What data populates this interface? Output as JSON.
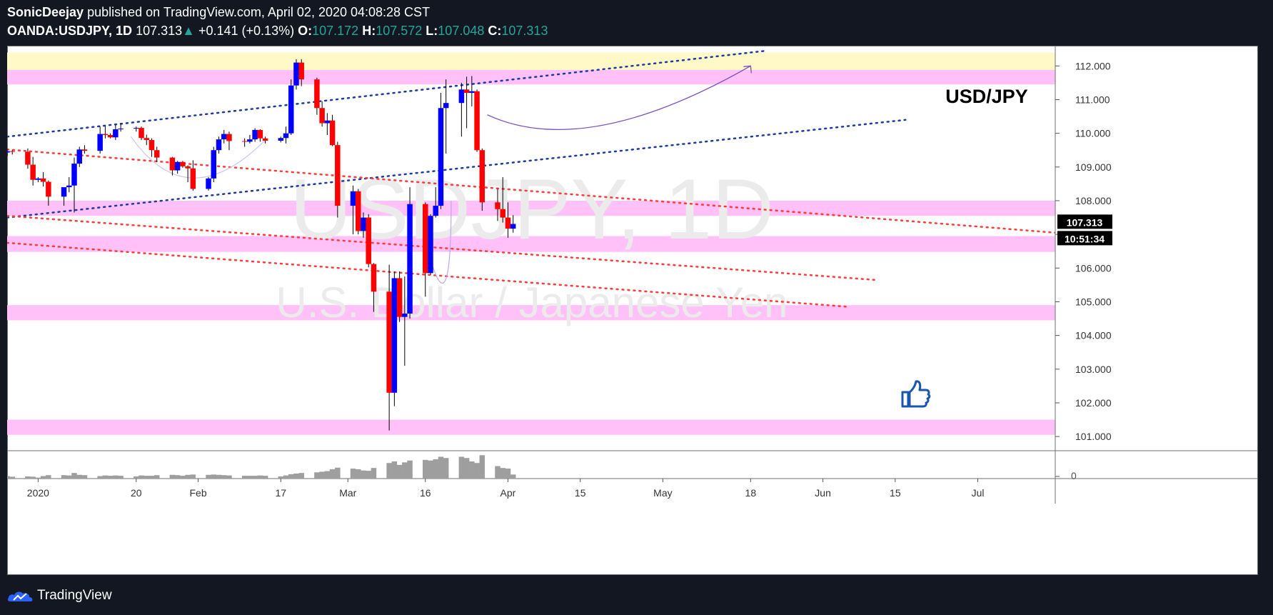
{
  "header": {
    "author": "SonicDeejay",
    "published_text": "published on TradingView.com, April 02, 2020 04:08:28 CST",
    "symbol": "OANDA:USDJPY, 1D",
    "last": "107.313",
    "change_arrow": "▲",
    "change": "+0.141 (+0.13%)",
    "open_label": "O:",
    "open": "107.172",
    "high_label": "H:",
    "high": "107.572",
    "low_label": "L:",
    "low": "107.048",
    "close_label": "C:",
    "close": "107.313"
  },
  "footer": {
    "brand": "TradingView"
  },
  "colors": {
    "up": "#0000ff",
    "down": "#ff0000",
    "wick": "#000000",
    "zone": "#ffc1f7",
    "zone_top": "#fff9c8",
    "channel_blue": "#1e3aa0",
    "channel_red": "#ff3b3b",
    "projection": "#7b4fbf",
    "volume": "#9e9e9e",
    "price_badge": "#000000",
    "thumb": "#1a56b0"
  },
  "chart_data": {
    "type": "candlestick",
    "instrument": "USD/JPY",
    "timeframe": "1D",
    "watermark": [
      "USDJPY, 1D",
      "U.S. Dollar / Japanese Yen"
    ],
    "title_label": "USD/JPY",
    "ylim": [
      100.6,
      112.6
    ],
    "yticks": [
      "112.000",
      "111.000",
      "110.000",
      "109.000",
      "108.000",
      "107.000",
      "106.000",
      "105.000",
      "104.000",
      "103.000",
      "102.000",
      "101.000"
    ],
    "ytick_values": [
      112,
      111,
      110,
      109,
      108,
      107,
      106,
      105,
      104,
      103,
      102,
      101
    ],
    "xticks": [
      {
        "label": "2020",
        "date": "2020-01-01"
      },
      {
        "label": "20",
        "date": "2020-01-20"
      },
      {
        "label": "Feb",
        "date": "2020-02-01"
      },
      {
        "label": "17",
        "date": "2020-02-17"
      },
      {
        "label": "Mar",
        "date": "2020-03-01"
      },
      {
        "label": "16",
        "date": "2020-03-16"
      },
      {
        "label": "Apr",
        "date": "2020-04-01"
      },
      {
        "label": "15",
        "date": "2020-04-15"
      },
      {
        "label": "May",
        "date": "2020-05-01"
      },
      {
        "label": "18",
        "date": "2020-05-18"
      },
      {
        "label": "Jun",
        "date": "2020-06-01"
      },
      {
        "label": "15",
        "date": "2020-06-15"
      },
      {
        "label": "Jul",
        "date": "2020-07-01"
      }
    ],
    "xlim": [
      "2019-12-26",
      "2020-07-16"
    ],
    "current_price": "107.313",
    "countdown": "10:51:34",
    "volume_axis_label": "0",
    "candles": [
      [
        "2019-12-26",
        109.43,
        109.55,
        109.33,
        109.47
      ],
      [
        "2019-12-27",
        109.47,
        109.5,
        109.37,
        109.45
      ],
      [
        "2019-12-30",
        109.45,
        109.55,
        108.95,
        109.07
      ],
      [
        "2019-12-31",
        109.07,
        109.3,
        108.45,
        108.62
      ],
      [
        "2020-01-01",
        108.62,
        108.7,
        108.55,
        108.66
      ],
      [
        "2020-01-02",
        108.66,
        108.85,
        108.42,
        108.56
      ],
      [
        "2020-01-03",
        108.56,
        108.6,
        107.85,
        108.12
      ],
      [
        "2020-01-06",
        108.12,
        108.3,
        107.85,
        108.4
      ],
      [
        "2020-01-07",
        108.4,
        108.7,
        108.25,
        108.45
      ],
      [
        "2020-01-08",
        108.45,
        109.28,
        107.65,
        109.1
      ],
      [
        "2020-01-09",
        109.1,
        109.6,
        109.0,
        109.52
      ],
      [
        "2020-01-10",
        109.52,
        109.65,
        109.4,
        109.48
      ],
      [
        "2020-01-13",
        109.48,
        110.2,
        109.4,
        109.98
      ],
      [
        "2020-01-14",
        109.98,
        110.22,
        109.85,
        109.95
      ],
      [
        "2020-01-15",
        109.95,
        110.0,
        109.85,
        109.88
      ],
      [
        "2020-01-16",
        109.88,
        110.25,
        109.8,
        110.12
      ],
      [
        "2020-01-17",
        110.12,
        110.3,
        110.05,
        110.14
      ],
      [
        "2020-01-20",
        110.14,
        110.2,
        110.05,
        110.16
      ],
      [
        "2020-01-21",
        110.16,
        110.2,
        109.8,
        109.86
      ],
      [
        "2020-01-22",
        109.86,
        109.96,
        109.65,
        109.8
      ],
      [
        "2020-01-23",
        109.8,
        109.85,
        109.3,
        109.5
      ],
      [
        "2020-01-24",
        109.5,
        109.6,
        109.15,
        109.28
      ],
      [
        "2020-01-27",
        109.28,
        109.3,
        108.75,
        108.9
      ],
      [
        "2020-01-28",
        108.9,
        109.18,
        108.8,
        109.15
      ],
      [
        "2020-01-29",
        109.15,
        109.18,
        108.98,
        109.02
      ],
      [
        "2020-01-30",
        109.02,
        109.05,
        108.55,
        108.96
      ],
      [
        "2020-01-31",
        108.96,
        109.2,
        108.3,
        108.35
      ],
      [
        "2020-02-03",
        108.35,
        108.7,
        108.3,
        108.66
      ],
      [
        "2020-02-04",
        108.66,
        109.6,
        108.55,
        109.5
      ],
      [
        "2020-02-05",
        109.5,
        109.9,
        109.4,
        109.82
      ],
      [
        "2020-02-06",
        109.82,
        110.1,
        109.7,
        109.98
      ],
      [
        "2020-02-07",
        109.98,
        110.05,
        109.5,
        109.77
      ],
      [
        "2020-02-10",
        109.77,
        109.85,
        109.6,
        109.75
      ],
      [
        "2020-02-11",
        109.75,
        109.95,
        109.7,
        109.82
      ],
      [
        "2020-02-12",
        109.82,
        110.15,
        109.75,
        110.1
      ],
      [
        "2020-02-13",
        110.1,
        110.12,
        109.75,
        109.85
      ],
      [
        "2020-02-14",
        109.85,
        109.9,
        109.7,
        109.78
      ],
      [
        "2020-02-17",
        109.78,
        109.9,
        109.73,
        109.86
      ],
      [
        "2020-02-18",
        109.86,
        110.2,
        109.7,
        110.0
      ],
      [
        "2020-02-19",
        110.0,
        111.6,
        109.95,
        111.42
      ],
      [
        "2020-02-20",
        111.42,
        112.2,
        111.3,
        112.1
      ],
      [
        "2020-02-21",
        112.1,
        112.2,
        111.4,
        111.6
      ],
      [
        "2020-02-24",
        111.6,
        111.65,
        110.55,
        110.75
      ],
      [
        "2020-02-25",
        110.75,
        110.95,
        110.2,
        110.3
      ],
      [
        "2020-02-26",
        110.3,
        110.6,
        109.95,
        110.38
      ],
      [
        "2020-02-27",
        110.38,
        110.55,
        109.62,
        109.65
      ],
      [
        "2020-02-28",
        109.65,
        109.75,
        107.5,
        107.85
      ],
      [
        "2020-03-02",
        107.85,
        108.45,
        107.0,
        108.28
      ],
      [
        "2020-03-03",
        108.28,
        108.35,
        107.0,
        107.1
      ],
      [
        "2020-03-04",
        107.1,
        107.65,
        106.9,
        107.5
      ],
      [
        "2020-03-05",
        107.5,
        107.6,
        106.02,
        106.12
      ],
      [
        "2020-03-06",
        106.12,
        106.15,
        104.7,
        105.3
      ],
      [
        "2020-03-09",
        105.3,
        106.1,
        101.18,
        102.3
      ],
      [
        "2020-03-10",
        102.3,
        105.9,
        101.9,
        105.7
      ],
      [
        "2020-03-11",
        105.7,
        105.9,
        104.4,
        104.55
      ],
      [
        "2020-03-12",
        104.55,
        105.75,
        103.1,
        104.65
      ],
      [
        "2020-03-13",
        104.65,
        108.4,
        104.5,
        107.9
      ],
      [
        "2020-03-16",
        107.9,
        107.95,
        105.15,
        105.85
      ],
      [
        "2020-03-17",
        105.85,
        107.6,
        105.8,
        107.55
      ],
      [
        "2020-03-18",
        107.55,
        108.4,
        107.5,
        107.85
      ],
      [
        "2020-03-19",
        107.85,
        111.2,
        107.75,
        110.75
      ],
      [
        "2020-03-20",
        110.75,
        111.6,
        109.4,
        110.9
      ],
      [
        "2020-03-23",
        110.9,
        111.5,
        109.9,
        111.3
      ],
      [
        "2020-03-24",
        111.3,
        111.68,
        110.15,
        111.2
      ],
      [
        "2020-03-25",
        111.2,
        111.7,
        110.8,
        111.25
      ],
      [
        "2020-03-26",
        111.25,
        111.3,
        109.45,
        109.5
      ],
      [
        "2020-03-27",
        109.5,
        109.55,
        107.7,
        107.95
      ],
      [
        "2020-03-30",
        107.95,
        108.35,
        107.4,
        107.75
      ],
      [
        "2020-03-31",
        107.75,
        108.7,
        107.35,
        107.5
      ],
      [
        "2020-04-01",
        107.5,
        107.95,
        106.9,
        107.17
      ],
      [
        "2020-04-02",
        107.17,
        107.57,
        107.05,
        107.31
      ]
    ],
    "volumes": [
      [
        "2019-12-26",
        8
      ],
      [
        "2019-12-27",
        6
      ],
      [
        "2019-12-30",
        7
      ],
      [
        "2019-12-31",
        6
      ],
      [
        "2020-01-01",
        3
      ],
      [
        "2020-01-02",
        8
      ],
      [
        "2020-01-03",
        11
      ],
      [
        "2020-01-06",
        11
      ],
      [
        "2020-01-07",
        10
      ],
      [
        "2020-01-08",
        18
      ],
      [
        "2020-01-09",
        12
      ],
      [
        "2020-01-10",
        11
      ],
      [
        "2020-01-13",
        8
      ],
      [
        "2020-01-14",
        10
      ],
      [
        "2020-01-15",
        9
      ],
      [
        "2020-01-16",
        10
      ],
      [
        "2020-01-17",
        9
      ],
      [
        "2020-01-20",
        7
      ],
      [
        "2020-01-21",
        10
      ],
      [
        "2020-01-22",
        9
      ],
      [
        "2020-01-23",
        9
      ],
      [
        "2020-01-24",
        11
      ],
      [
        "2020-01-27",
        12
      ],
      [
        "2020-01-28",
        11
      ],
      [
        "2020-01-29",
        9
      ],
      [
        "2020-01-30",
        12
      ],
      [
        "2020-01-31",
        13
      ],
      [
        "2020-02-03",
        12
      ],
      [
        "2020-02-04",
        13
      ],
      [
        "2020-02-05",
        12
      ],
      [
        "2020-02-06",
        11
      ],
      [
        "2020-02-07",
        10
      ],
      [
        "2020-02-10",
        9
      ],
      [
        "2020-02-11",
        9
      ],
      [
        "2020-02-12",
        9
      ],
      [
        "2020-02-13",
        10
      ],
      [
        "2020-02-14",
        9
      ],
      [
        "2020-02-17",
        7
      ],
      [
        "2020-02-18",
        10
      ],
      [
        "2020-02-19",
        14
      ],
      [
        "2020-02-20",
        16
      ],
      [
        "2020-02-21",
        18
      ],
      [
        "2020-02-24",
        20
      ],
      [
        "2020-02-25",
        22
      ],
      [
        "2020-02-26",
        24
      ],
      [
        "2020-02-27",
        30
      ],
      [
        "2020-02-28",
        35
      ],
      [
        "2020-03-02",
        32
      ],
      [
        "2020-03-03",
        30
      ],
      [
        "2020-03-04",
        26
      ],
      [
        "2020-03-05",
        25
      ],
      [
        "2020-03-06",
        34
      ],
      [
        "2020-03-09",
        50
      ],
      [
        "2020-03-10",
        55
      ],
      [
        "2020-03-11",
        44
      ],
      [
        "2020-03-12",
        52
      ],
      [
        "2020-03-13",
        58
      ],
      [
        "2020-03-16",
        60
      ],
      [
        "2020-03-17",
        58
      ],
      [
        "2020-03-18",
        62
      ],
      [
        "2020-03-19",
        70
      ],
      [
        "2020-03-20",
        66
      ],
      [
        "2020-03-23",
        70
      ],
      [
        "2020-03-24",
        66
      ],
      [
        "2020-03-25",
        55
      ],
      [
        "2020-03-26",
        50
      ],
      [
        "2020-03-27",
        75
      ],
      [
        "2020-03-30",
        40
      ],
      [
        "2020-03-31",
        34
      ],
      [
        "2020-04-01",
        32
      ],
      [
        "2020-04-02",
        13
      ]
    ],
    "zones": [
      {
        "from": 111.5,
        "to": 112.4,
        "color": "zone_top"
      },
      {
        "from": 111.45,
        "to": 111.88,
        "color": "zone"
      },
      {
        "from": 107.55,
        "to": 108.0,
        "color": "zone"
      },
      {
        "from": 106.48,
        "to": 106.95,
        "color": "zone"
      },
      {
        "from": 104.45,
        "to": 104.9,
        "color": "zone"
      },
      {
        "from": 101.05,
        "to": 101.5,
        "color": "zone"
      }
    ],
    "trendlines": [
      {
        "color": "channel_blue",
        "from": [
          "2019-12-26",
          109.9
        ],
        "to": [
          "2020-05-21",
          112.45
        ]
      },
      {
        "color": "channel_blue",
        "from": [
          "2019-12-26",
          107.5
        ],
        "to": [
          "2020-06-17",
          110.4
        ]
      },
      {
        "color": "channel_red",
        "from": [
          "2019-12-26",
          109.52
        ],
        "to": [
          "2020-07-16",
          107.05
        ]
      },
      {
        "color": "channel_red",
        "from": [
          "2019-12-26",
          107.55
        ],
        "to": [
          "2020-06-11",
          105.65
        ]
      },
      {
        "color": "channel_red",
        "from": [
          "2019-12-26",
          106.75
        ],
        "to": [
          "2020-06-06",
          104.85
        ]
      }
    ]
  }
}
